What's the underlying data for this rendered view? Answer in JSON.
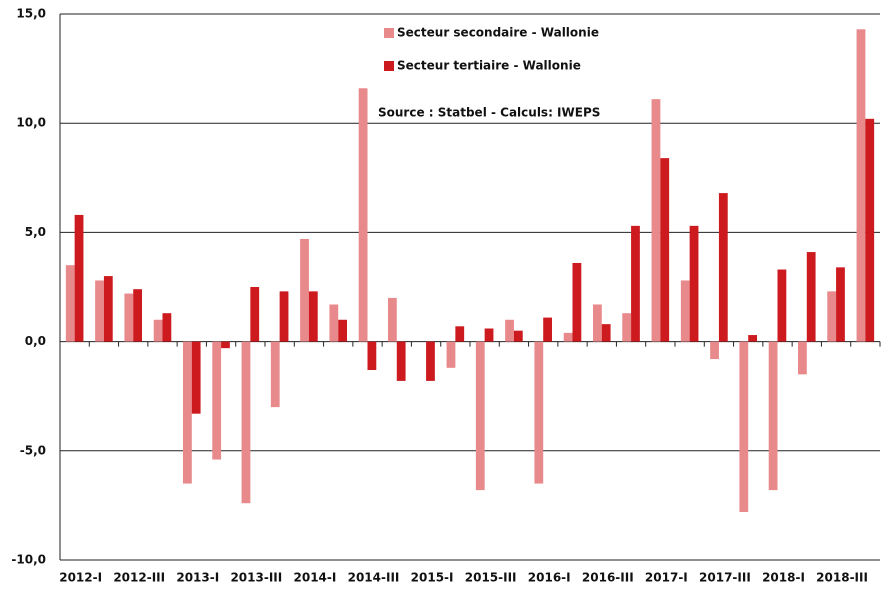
{
  "chart_data": {
    "type": "bar",
    "categories": [
      "2012-I",
      null,
      "2012-III",
      null,
      "2013-I",
      null,
      "2013-III",
      null,
      "2014-I",
      null,
      "2014-III",
      null,
      "2015-I",
      null,
      "2015-III",
      null,
      "2016-I",
      null,
      "2016-III",
      null,
      "2017-I",
      null,
      "2017-III",
      null,
      "2018-I",
      null,
      "2018-III",
      null
    ],
    "series": [
      {
        "name": "Secteur secondaire - Wallonie",
        "color": "#e8898b",
        "values": [
          3.5,
          2.8,
          2.2,
          1.0,
          -6.5,
          -5.4,
          -7.4,
          -3.0,
          4.7,
          1.7,
          11.6,
          2.0,
          0.0,
          -1.2,
          -6.8,
          1.0,
          -6.5,
          0.4,
          1.7,
          1.3,
          11.1,
          2.8,
          -0.8,
          -7.8,
          -6.8,
          -1.5,
          2.3,
          14.3
        ]
      },
      {
        "name": "Secteur tertiaire - Wallonie",
        "color": "#cc1a1f",
        "values": [
          5.8,
          3.0,
          2.4,
          1.3,
          -3.3,
          -0.3,
          2.5,
          2.3,
          2.3,
          1.0,
          -1.3,
          -1.8,
          -1.8,
          0.7,
          0.6,
          0.5,
          1.1,
          3.6,
          0.8,
          5.3,
          8.4,
          5.3,
          6.8,
          0.3,
          3.3,
          4.1,
          3.4,
          10.2
        ]
      }
    ],
    "annotation": "Source : Statbel - Calculs: IWEPS",
    "ylim": [
      -10,
      15
    ],
    "yticks": [
      {
        "value": -10,
        "label": "-10,0"
      },
      {
        "value": -5,
        "label": "-5,0"
      },
      {
        "value": 0,
        "label": "0,0"
      },
      {
        "value": 5,
        "label": "5,0"
      },
      {
        "value": 10,
        "label": "10,0"
      },
      {
        "value": 15,
        "label": "15,0"
      }
    ],
    "grid": true,
    "legend": "top"
  }
}
